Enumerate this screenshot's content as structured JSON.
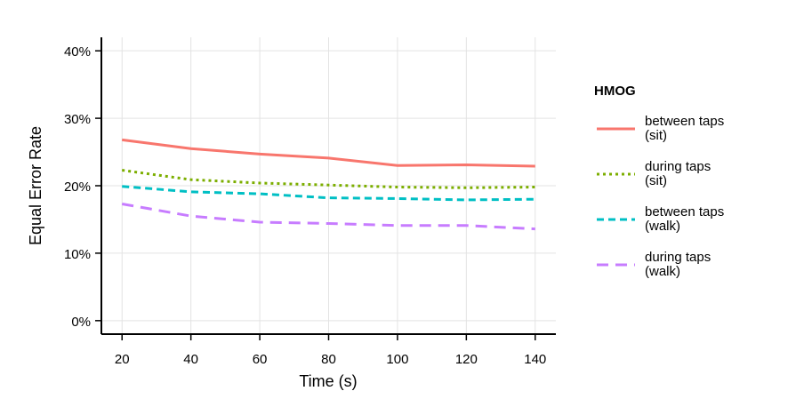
{
  "chart_data": {
    "type": "line",
    "xlabel": "Time (s)",
    "ylabel": "Equal Error Rate",
    "x": [
      20,
      40,
      60,
      80,
      100,
      120,
      140
    ],
    "xticks": [
      "20",
      "40",
      "60",
      "80",
      "100",
      "120",
      "140"
    ],
    "yticks": [
      0,
      10,
      20,
      30,
      40
    ],
    "ytick_labels": [
      "0%",
      "10%",
      "20%",
      "30%",
      "40%"
    ],
    "xlim": [
      14,
      146
    ],
    "ylim": [
      -2,
      42
    ],
    "grid": true,
    "legend": {
      "title": "HMOG",
      "placement": "right"
    },
    "series": [
      {
        "name": "between taps (sit)",
        "label_lines": [
          "between taps",
          "(sit)"
        ],
        "color": "#F8766D",
        "dash": "solid",
        "values": [
          26.8,
          25.5,
          24.7,
          24.1,
          23.0,
          23.1,
          22.9
        ]
      },
      {
        "name": "during taps (sit)",
        "label_lines": [
          "during taps",
          "(sit)"
        ],
        "color": "#7CAE00",
        "dash": "dotted",
        "values": [
          22.3,
          20.9,
          20.4,
          20.1,
          19.8,
          19.7,
          19.8
        ]
      },
      {
        "name": "between taps (walk)",
        "label_lines": [
          "between taps",
          "(walk)"
        ],
        "color": "#00BFC4",
        "dash": "dashed",
        "values": [
          19.9,
          19.1,
          18.8,
          18.2,
          18.1,
          17.9,
          18.0
        ]
      },
      {
        "name": "during taps (walk)",
        "label_lines": [
          "during taps",
          "(walk)"
        ],
        "color": "#C77CFF",
        "dash": "longdash",
        "values": [
          17.3,
          15.5,
          14.6,
          14.4,
          14.1,
          14.1,
          13.6
        ]
      }
    ]
  }
}
